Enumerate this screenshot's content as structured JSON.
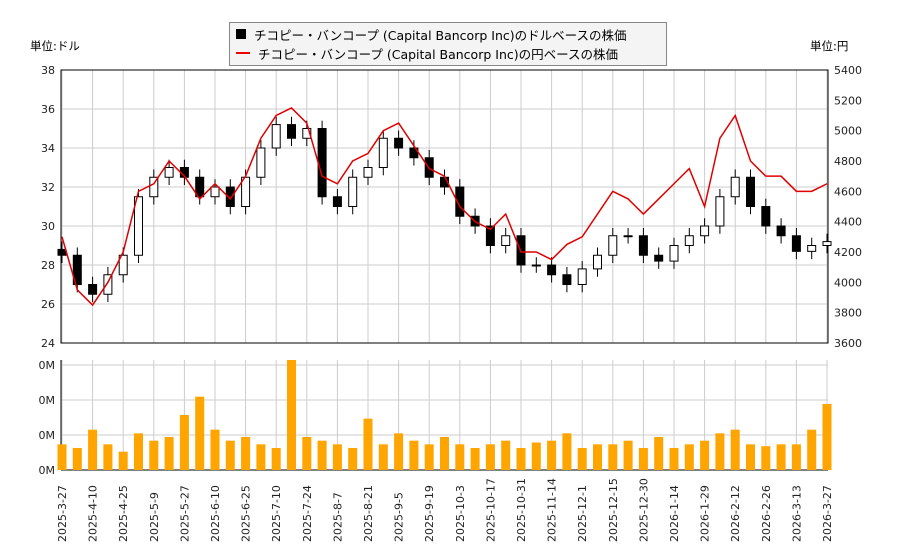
{
  "legend": {
    "usd_label": "チコピー・バンコープ (Capital Bancorp Inc)のドルベースの株価",
    "jpy_label": "チコピー・バンコープ (Capital Bancorp Inc)の円ベースの株価"
  },
  "units": {
    "left": "単位:ドル",
    "right": "単位:円"
  },
  "colors": {
    "candle": "#000000",
    "yen_line": "#e00000",
    "volume": "#ffa500",
    "grid": "#cccccc"
  },
  "chart_data": {
    "type": "line",
    "title": "",
    "left_axis": {
      "ylim": [
        24,
        38
      ],
      "ticks": [
        "24",
        "26",
        "28",
        "30",
        "32",
        "34",
        "36",
        "38"
      ]
    },
    "right_axis": {
      "ylim": [
        3600,
        5400
      ],
      "ticks": [
        "3600",
        "3800",
        "4000",
        "4200",
        "4400",
        "4600",
        "4800",
        "5000",
        "5200",
        "5400"
      ]
    },
    "volume_axis": {
      "ticks": [
        "0M",
        "0M",
        "0M",
        "0M"
      ]
    },
    "x_tick_labels": [
      "2025-3-27",
      "2025-4-10",
      "2025-4-25",
      "2025-5-9",
      "2025-5-27",
      "2025-6-10",
      "2025-6-25",
      "2025-7-10",
      "2025-7-24",
      "2025-8-7",
      "2025-8-21",
      "2025-9-5",
      "2025-9-19",
      "2025-10-3",
      "2025-10-17",
      "2025-10-31",
      "2025-11-14",
      "2025-12-1",
      "2025-12-15",
      "2025-12-30",
      "2026-1-14",
      "2026-1-29",
      "2026-2-12",
      "2026-2-26",
      "2026-3-13",
      "2026-3-27"
    ],
    "series": [
      {
        "name": "usd_close",
        "values": [
          28.5,
          27,
          26.5,
          27.5,
          28.5,
          31.5,
          32.5,
          33,
          32.5,
          31.5,
          32,
          31,
          32.5,
          34,
          35.2,
          34.5,
          35,
          31.5,
          31,
          32.5,
          33,
          34.5,
          34,
          33.5,
          32.5,
          32,
          30.5,
          30,
          29,
          29.5,
          28,
          28,
          27.5,
          27,
          27.8,
          28.5,
          29.5,
          29.5,
          28.5,
          28.2,
          29,
          29.5,
          30,
          31.5,
          32.5,
          31,
          30,
          29.5,
          28.7,
          29,
          29.2
        ]
      },
      {
        "name": "jpy_close",
        "values": [
          4300,
          3950,
          3850,
          4000,
          4200,
          4600,
          4650,
          4800,
          4700,
          4550,
          4650,
          4550,
          4700,
          4950,
          5100,
          5150,
          5050,
          4700,
          4650,
          4800,
          4850,
          5000,
          5050,
          4900,
          4750,
          4700,
          4500,
          4400,
          4350,
          4450,
          4200,
          4200,
          4150,
          4250,
          4300,
          4450,
          4600,
          4550,
          4450,
          4550,
          4650,
          4750,
          4500,
          4950,
          5100,
          4800,
          4700,
          4700,
          4600,
          4600,
          4650
        ]
      },
      {
        "name": "volume",
        "values": [
          14,
          12,
          22,
          14,
          10,
          20,
          16,
          18,
          30,
          40,
          22,
          16,
          18,
          14,
          12,
          60,
          18,
          16,
          14,
          12,
          28,
          14,
          20,
          16,
          14,
          18,
          14,
          12,
          14,
          16,
          12,
          15,
          16,
          20,
          12,
          14,
          14,
          16,
          12,
          18,
          12,
          14,
          16,
          20,
          22,
          14,
          13,
          14,
          14,
          22,
          36
        ]
      }
    ]
  }
}
